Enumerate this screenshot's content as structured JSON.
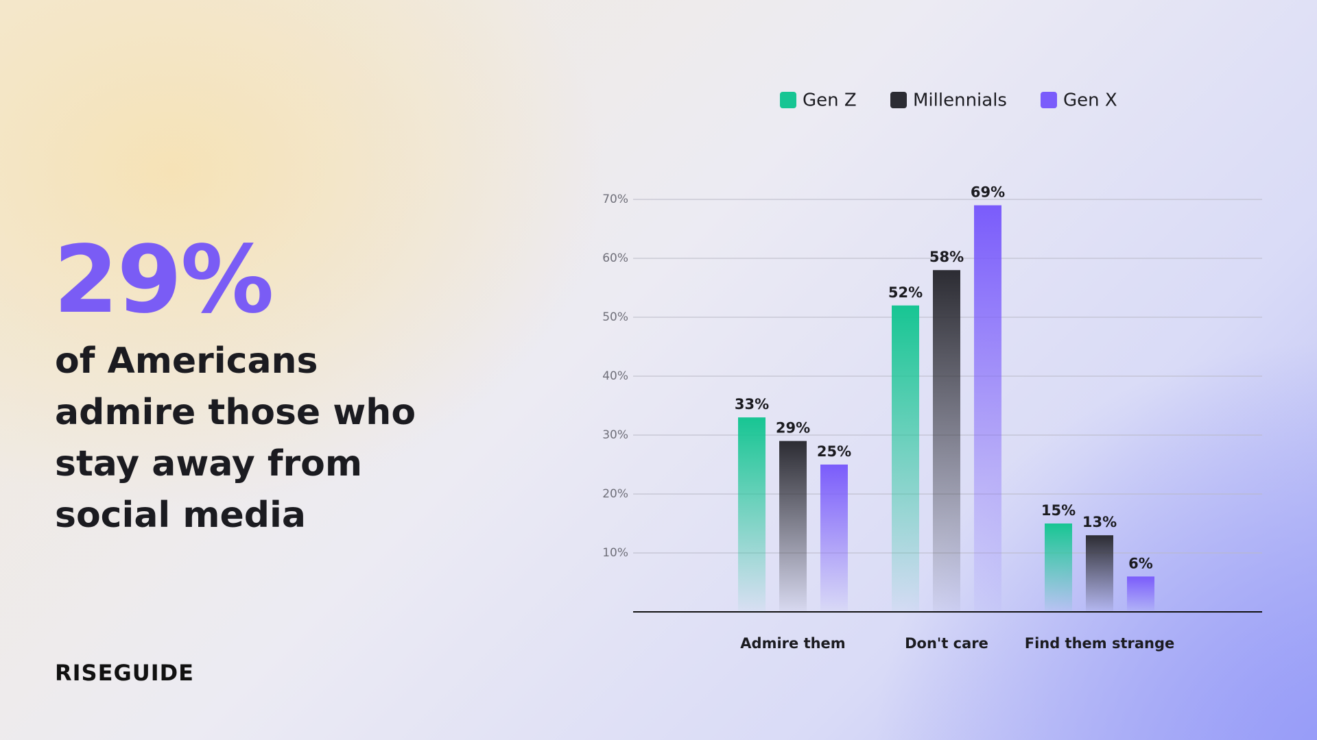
{
  "headline": {
    "stat": "29%",
    "text": "of Americans admire those who stay away from social media"
  },
  "logo": "RISEGUIDE",
  "chart_data": {
    "type": "bar",
    "categories": [
      "Admire them",
      "Don't care",
      "Find them strange"
    ],
    "series": [
      {
        "name": "Gen Z",
        "color": "#17c593",
        "values": [
          33,
          52,
          15
        ],
        "value_labels": [
          "33%",
          "52%",
          "15%"
        ]
      },
      {
        "name": "Millennials",
        "color": "#2c2c33",
        "values": [
          29,
          58,
          13
        ],
        "value_labels": [
          "29%",
          "58%",
          "13%"
        ]
      },
      {
        "name": "Gen X",
        "color": "#7a5cfb",
        "values": [
          25,
          69,
          6
        ],
        "value_labels": [
          "25%",
          "69%",
          "6%"
        ]
      }
    ],
    "ylim": [
      0,
      70
    ],
    "yticks": [
      {
        "value": 10,
        "label": "10%"
      },
      {
        "value": 20,
        "label": "20%"
      },
      {
        "value": 30,
        "label": "30%"
      },
      {
        "value": 40,
        "label": "40%"
      },
      {
        "value": 50,
        "label": "50%"
      },
      {
        "value": 60,
        "label": "60%"
      },
      {
        "value": 70,
        "label": "70%"
      }
    ],
    "grid": true
  }
}
